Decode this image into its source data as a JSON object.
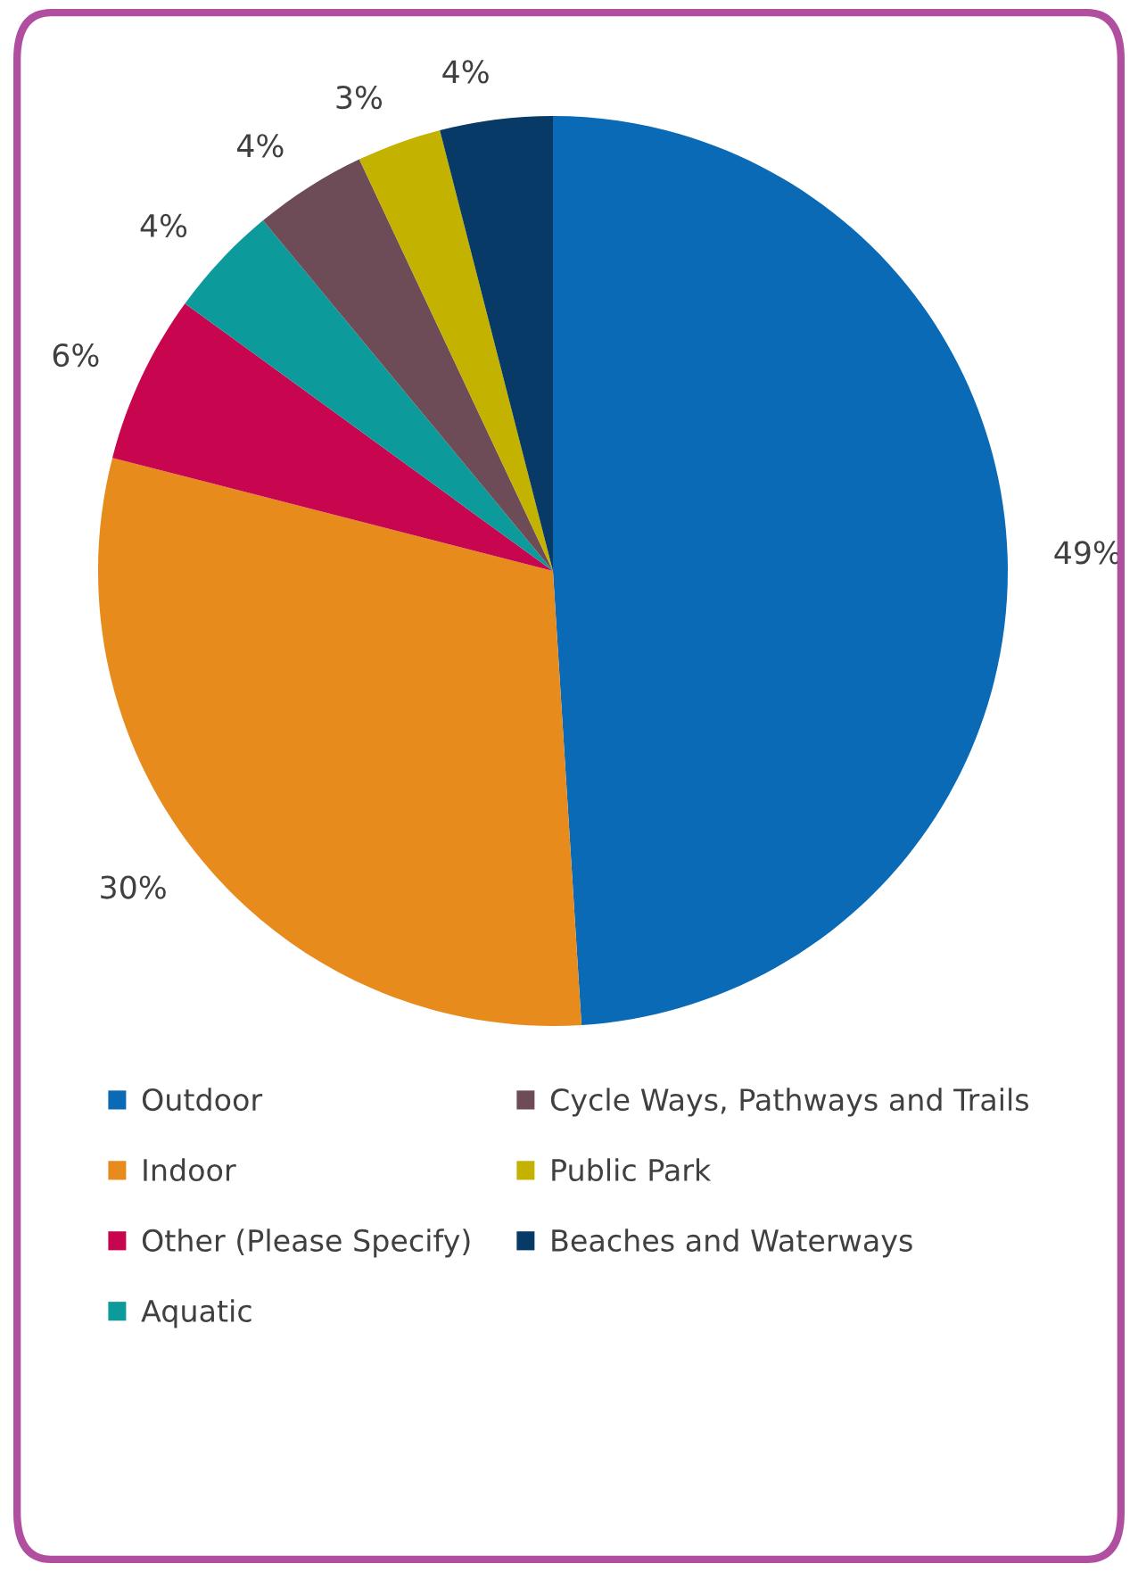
{
  "chart_data": {
    "type": "pie",
    "categories": [
      "Outdoor",
      "Indoor",
      "Other (Please Specify)",
      "Aquatic",
      "Cycle Ways, Pathways and Trails",
      "Public Park",
      "Beaches and Waterways"
    ],
    "values": [
      49,
      30,
      6,
      4,
      4,
      3,
      4
    ],
    "value_labels": [
      "49%",
      "30%",
      "6%",
      "4%",
      "4%",
      "3%",
      "4%"
    ],
    "colors": [
      "#0a6ab6",
      "#e78b1d",
      "#c8064f",
      "#0d9a9a",
      "#6e4c57",
      "#c3b300",
      "#073a66"
    ],
    "legend": "bottom"
  }
}
